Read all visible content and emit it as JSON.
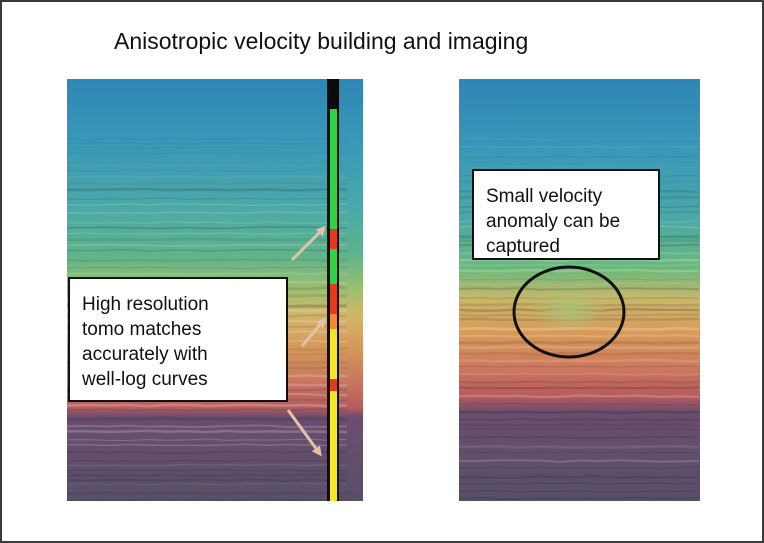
{
  "slide": {
    "title": "Anisotropic velocity building and imaging"
  },
  "left_panel": {
    "callout_lines": [
      "High resolution",
      "tomo matches",
      "accurately with",
      "well-log curves"
    ]
  },
  "right_panel": {
    "callout_lines": [
      "Small velocity",
      "anomaly can be",
      "captured"
    ]
  },
  "colors": {
    "shallow": "#2f8fb3",
    "mid": "#6ab87a",
    "orange": "#d49a55",
    "red": "#b8595a",
    "deep": "#5a4f6b",
    "arrow": "#e3c2a8",
    "well_log_green": "#35d04a",
    "well_log_red": "#e23a1e",
    "well_log_yellow": "#f2e52a"
  }
}
